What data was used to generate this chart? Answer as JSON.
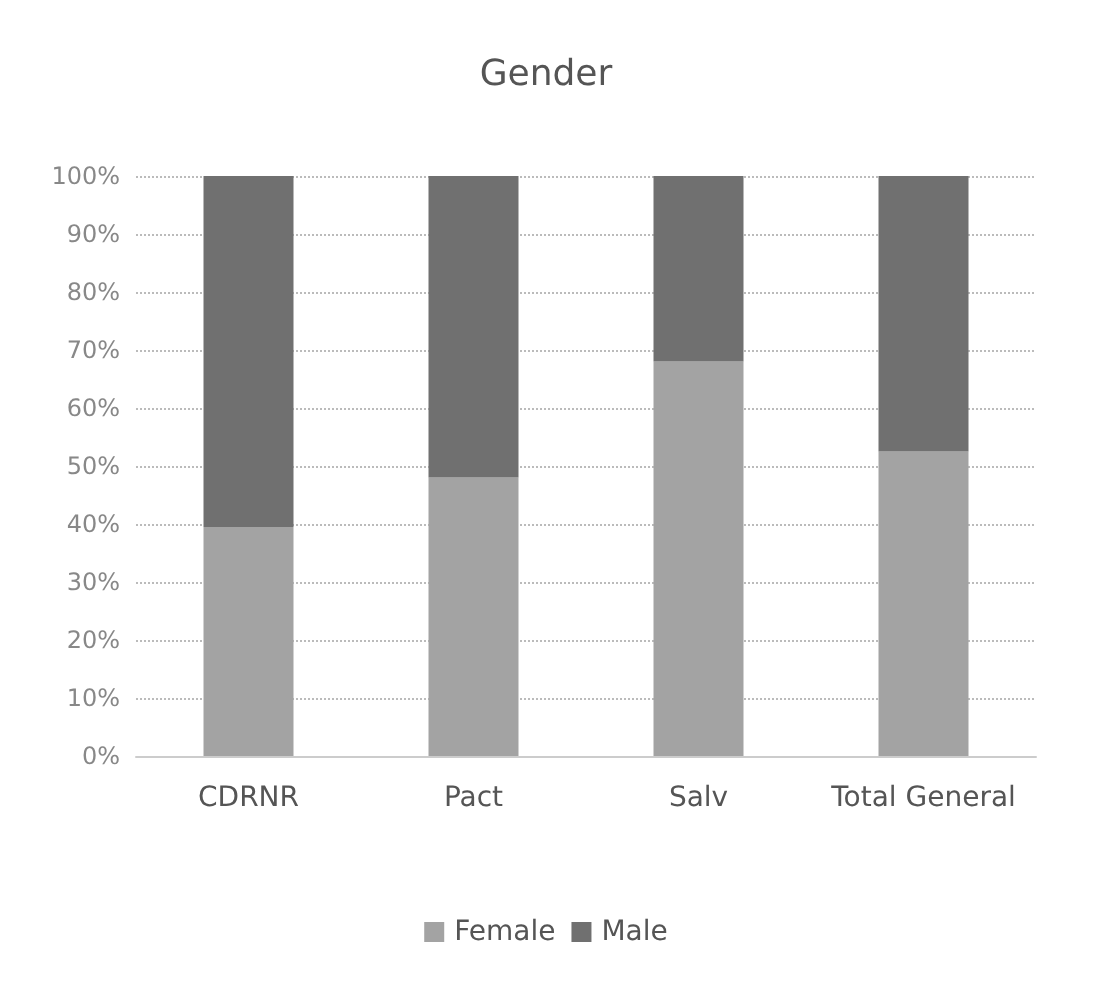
{
  "chart_data": {
    "type": "bar",
    "title": "Gender",
    "categories": [
      "CDRNR",
      "Pact",
      "Salv",
      "Total General"
    ],
    "stacked": true,
    "series": [
      {
        "name": "Female",
        "color": "#a3a3a3",
        "values": [
          39.5,
          48,
          68,
          52.5
        ]
      },
      {
        "name": "Male",
        "color": "#707070",
        "values": [
          60.5,
          52,
          32,
          47.5
        ]
      }
    ],
    "ylim": [
      0,
      100
    ],
    "yticks": [
      {
        "value": 0,
        "label": "0%"
      },
      {
        "value": 10,
        "label": "10%"
      },
      {
        "value": 20,
        "label": "20%"
      },
      {
        "value": 30,
        "label": "30%"
      },
      {
        "value": 40,
        "label": "40%"
      },
      {
        "value": 50,
        "label": "50%"
      },
      {
        "value": 60,
        "label": "60%"
      },
      {
        "value": 70,
        "label": "70%"
      },
      {
        "value": 80,
        "label": "80%"
      },
      {
        "value": 90,
        "label": "90%"
      },
      {
        "value": 100,
        "label": "100%"
      }
    ],
    "grid": "y",
    "legend": "bottom"
  }
}
